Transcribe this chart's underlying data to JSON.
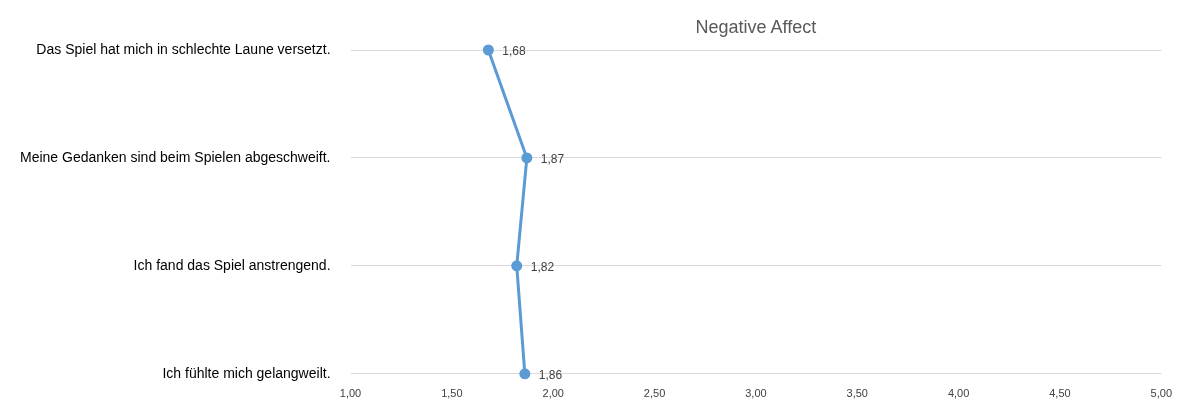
{
  "chart_data": {
    "type": "line",
    "orientation": "horizontal",
    "title": "Negative Affect",
    "categories": [
      "Das Spiel hat mich in schlechte Laune versetzt.",
      "Meine Gedanken sind beim Spielen abgeschweift.",
      "Ich fand das Spiel anstrengend.",
      "Ich fühlte mich gelangweilt."
    ],
    "series": [
      {
        "color": "#5b9bd5",
        "values": [
          1.68,
          1.87,
          1.82,
          1.86
        ],
        "value_labels": [
          "1,68",
          "1,87",
          "1,82",
          "1,86"
        ]
      }
    ],
    "xlim": [
      1,
      5
    ],
    "xticks": [
      {
        "value": 1,
        "label": "1,00"
      },
      {
        "value": 1.5,
        "label": "1,50"
      },
      {
        "value": 2,
        "label": "2,00"
      },
      {
        "value": 2.5,
        "label": "2,50"
      },
      {
        "value": 3,
        "label": "3,00"
      },
      {
        "value": 3.5,
        "label": "3,50"
      },
      {
        "value": 4,
        "label": "4,00"
      },
      {
        "value": 4.5,
        "label": "4,50"
      },
      {
        "value": 5,
        "label": "5,00"
      }
    ],
    "grid": "y",
    "marker": "circle",
    "line_style": "solid",
    "legend": false
  }
}
